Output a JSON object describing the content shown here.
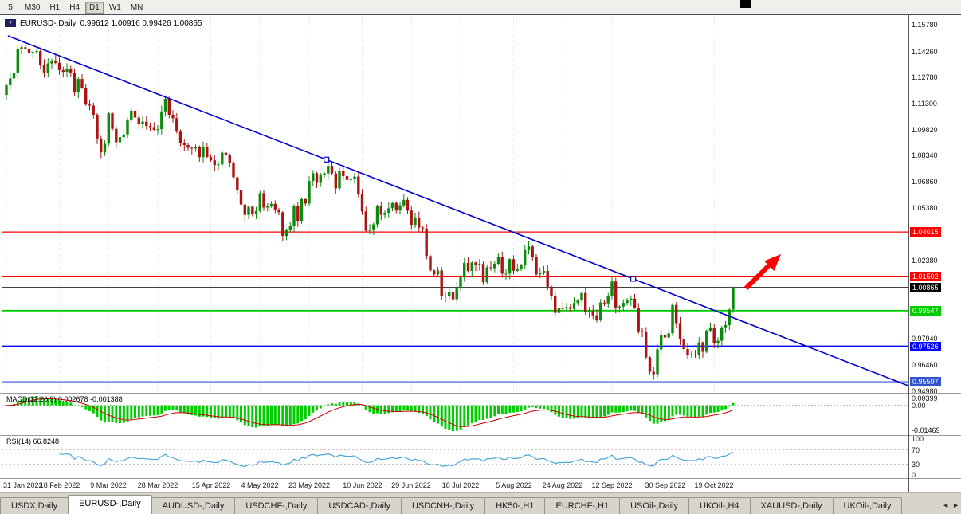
{
  "toolbar": {
    "timeframes": [
      {
        "label": "5",
        "active": false
      },
      {
        "label": "M30",
        "active": false
      },
      {
        "label": "H1",
        "active": false
      },
      {
        "label": "H4",
        "active": false
      },
      {
        "label": "D1",
        "active": true
      },
      {
        "label": "W1",
        "active": false
      },
      {
        "label": "MN",
        "active": false
      }
    ]
  },
  "chart": {
    "header_symbol": "EURUSD-,Daily",
    "header_ohlc": "0.99612 1.00916 0.99426 1.00865"
  },
  "chart_data": {
    "type": "candlestick",
    "symbol": "EURUSD-",
    "period": "Daily",
    "last_ohlc": {
      "open": 0.99612,
      "high": 1.00916,
      "low": 0.99426,
      "close": 1.00865
    },
    "first_open": 1.118,
    "closes": [
      1.1235,
      1.1273,
      1.1305,
      1.144,
      1.145,
      1.1443,
      1.1417,
      1.1424,
      1.1428,
      1.1348,
      1.1306,
      1.1358,
      1.1375,
      1.1362,
      1.1321,
      1.1311,
      1.1327,
      1.1307,
      1.1193,
      1.127,
      1.1219,
      1.1125,
      1.1119,
      1.1067,
      1.0932,
      1.0854,
      1.0902,
      1.1075,
      1.0987,
      1.0911,
      1.094,
      1.0955,
      1.1036,
      1.109,
      1.1051,
      1.1015,
      1.1028,
      1.1003,
      1.0997,
      1.0982,
      1.0985,
      1.1086,
      1.1158,
      1.1067,
      1.1047,
      1.0971,
      1.0905,
      1.0895,
      1.0879,
      1.0876,
      1.0884,
      1.0826,
      1.0886,
      1.0827,
      1.0808,
      1.0781,
      1.0785,
      1.0852,
      1.0837,
      1.0794,
      1.0712,
      1.0637,
      1.0557,
      1.0498,
      1.0545,
      1.0504,
      1.0521,
      1.0622,
      1.054,
      1.055,
      1.0561,
      1.0529,
      1.0513,
      1.0379,
      1.0411,
      1.0434,
      1.0549,
      1.0465,
      1.0588,
      1.0563,
      1.0691,
      1.0735,
      1.068,
      1.0724,
      1.0734,
      1.0777,
      1.0734,
      1.0649,
      1.0748,
      1.0719,
      1.0697,
      1.0703,
      1.0716,
      1.0617,
      1.0518,
      1.0408,
      1.0414,
      1.0445,
      1.055,
      1.0499,
      1.0511,
      1.0536,
      1.0566,
      1.0523,
      1.0553,
      1.0584,
      1.0523,
      1.0442,
      1.0484,
      1.0426,
      1.0421,
      1.0265,
      1.0183,
      1.0161,
      1.0183,
      1.004,
      1.0036,
      1.006,
      1.0019,
      1.0083,
      1.0143,
      1.0226,
      1.018,
      1.0228,
      1.0213,
      1.022,
      1.0116,
      1.0201,
      1.0196,
      1.0221,
      1.026,
      1.0165,
      1.0165,
      1.0247,
      1.0181,
      1.0193,
      1.0212,
      1.0298,
      1.0319,
      1.0257,
      1.016,
      1.0171,
      1.018,
      1.0091,
      1.0039,
      0.9942,
      0.9969,
      0.9967,
      0.9975,
      0.9965,
      0.9998,
      1.0015,
      1.0055,
      0.9946,
      0.9955,
      0.9928,
      0.9903,
      1.0001,
      0.9996,
      1.004,
      1.012,
      0.997,
      0.9978,
      0.9999,
      1.0016,
      1.0023,
      0.997,
      0.9838,
      0.9836,
      0.969,
      0.9608,
      0.9594,
      0.9735,
      0.9815,
      0.9802,
      0.9826,
      0.9987,
      0.9884,
      0.9794,
      0.9737,
      0.9704,
      0.9706,
      0.9703,
      0.9775,
      0.9721,
      0.9841,
      0.9855,
      0.9773,
      0.9784,
      0.986,
      0.9873,
      0.9961,
      1.00865
    ],
    "x_labels": [
      {
        "index": 0,
        "label": "31 Jan 2022"
      },
      {
        "index": 14,
        "label": "18 Feb 2022"
      },
      {
        "index": 27,
        "label": "9 Mar 2022"
      },
      {
        "index": 40,
        "label": "28 Mar 2022"
      },
      {
        "index": 54,
        "label": "15 Apr 2022"
      },
      {
        "index": 67,
        "label": "4 May 2022"
      },
      {
        "index": 80,
        "label": "23 May 2022"
      },
      {
        "index": 94,
        "label": "10 Jun 2022"
      },
      {
        "index": 107,
        "label": "29 Jun 2022"
      },
      {
        "index": 120,
        "label": "18 Jul 2022"
      },
      {
        "index": 134,
        "label": "5 Aug 2022"
      },
      {
        "index": 147,
        "label": "24 Aug 2022"
      },
      {
        "index": 160,
        "label": "12 Sep 2022"
      },
      {
        "index": 174,
        "label": "30 Sep 2022"
      },
      {
        "index": 187,
        "label": "19 Oct 2022"
      }
    ],
    "y_ticks": [
      1.1578,
      1.1426,
      1.1278,
      1.113,
      1.0982,
      1.0834,
      1.0686,
      1.0538,
      1.0238,
      0.9794,
      0.9646,
      0.9498
    ],
    "price_range": {
      "top": 1.1628,
      "bottom": 0.9488
    },
    "levels": [
      {
        "price": 1.04015,
        "label": "1.04015",
        "color": "#FF0000",
        "width": 1.3
      },
      {
        "price": 1.01502,
        "label": "1.01502",
        "color": "#FF0000",
        "width": 1.3
      },
      {
        "price": 0.99547,
        "label": "0.99547",
        "color": "#00CC00",
        "width": 1.8
      },
      {
        "price": 0.97526,
        "label": "0.97526",
        "color": "#0000FF",
        "width": 1.8
      },
      {
        "price": 0.95507,
        "label": "0.95507",
        "color": "#3355CC",
        "width": 1.1
      }
    ],
    "current_price": {
      "price": 1.00865,
      "label": "1.00865",
      "color": "#000000"
    },
    "trendline": {
      "color": "#0000CC",
      "price_left": 1.1515,
      "price_right": 0.9507,
      "handle_fracs": [
        0.35,
        0.687
      ]
    },
    "arrow": {
      "color": "#FF0000"
    },
    "candle_colors": {
      "up": "#0C8A0C",
      "down": "#AA1414"
    },
    "indicators": {
      "macd": {
        "label": "MACD(12,26,9) 0.002678 -0.001388",
        "fast": 12,
        "slow": 26,
        "signal": 9,
        "value": 0.002678,
        "signal_value": -0.001388,
        "axis_labels": [
          "0.00399",
          "0.00",
          "-0.01469"
        ],
        "histogram_color": "#00CC00",
        "signal_color": "#CC0000"
      },
      "rsi": {
        "label": "RSI(14) 66.8248",
        "period": 14,
        "value": 66.8248,
        "axis_labels": [
          "100",
          "70",
          "30",
          "0"
        ],
        "levels": [
          70,
          30
        ],
        "line_color": "#4AA6D8"
      }
    }
  },
  "tabbar": {
    "tabs": [
      {
        "label": "USDX,Daily",
        "active": false
      },
      {
        "label": "EURUSD-,Daily",
        "active": true
      },
      {
        "label": "AUDUSD-,Daily",
        "active": false
      },
      {
        "label": "USDCHF-,Daily",
        "active": false
      },
      {
        "label": "USDCAD-,Daily",
        "active": false
      },
      {
        "label": "USDCNH-,Daily",
        "active": false
      },
      {
        "label": "HK50-,H1",
        "active": false
      },
      {
        "label": "EURCHF-,H1",
        "active": false
      },
      {
        "label": "USOil-,Daily",
        "active": false
      },
      {
        "label": "UKOil-,H4",
        "active": false
      },
      {
        "label": "XAUUSD-,Daily",
        "active": false
      },
      {
        "label": "UKOil-,Daily",
        "active": false
      }
    ]
  }
}
